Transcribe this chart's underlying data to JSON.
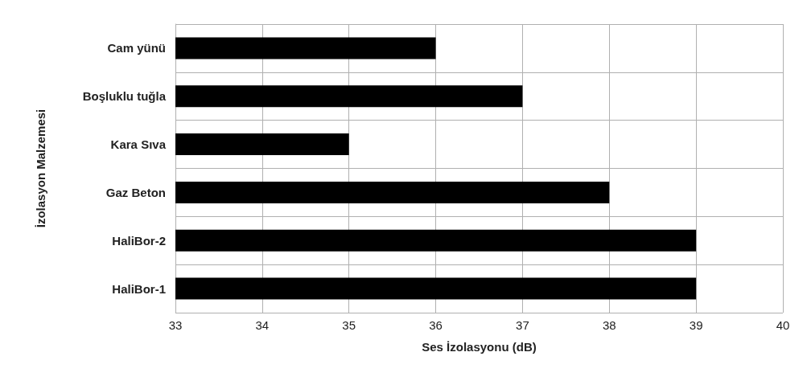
{
  "chart_data": {
    "type": "bar",
    "orientation": "horizontal",
    "xlabel": "Ses İzolasyonu (dB)",
    "ylabel": "İzolasyon Malzemesi",
    "categories": [
      "Cam yünü",
      "Boşluklu tuğla",
      "Kara Sıva",
      "Gaz Beton",
      "HaliBor-2",
      "HaliBor-1"
    ],
    "values": [
      36,
      37,
      35,
      38,
      39,
      39
    ],
    "color": "#000000",
    "xlim": [
      33,
      40
    ],
    "xticks": [
      33,
      34,
      35,
      36,
      37,
      38,
      39,
      40
    ],
    "grid": true
  }
}
